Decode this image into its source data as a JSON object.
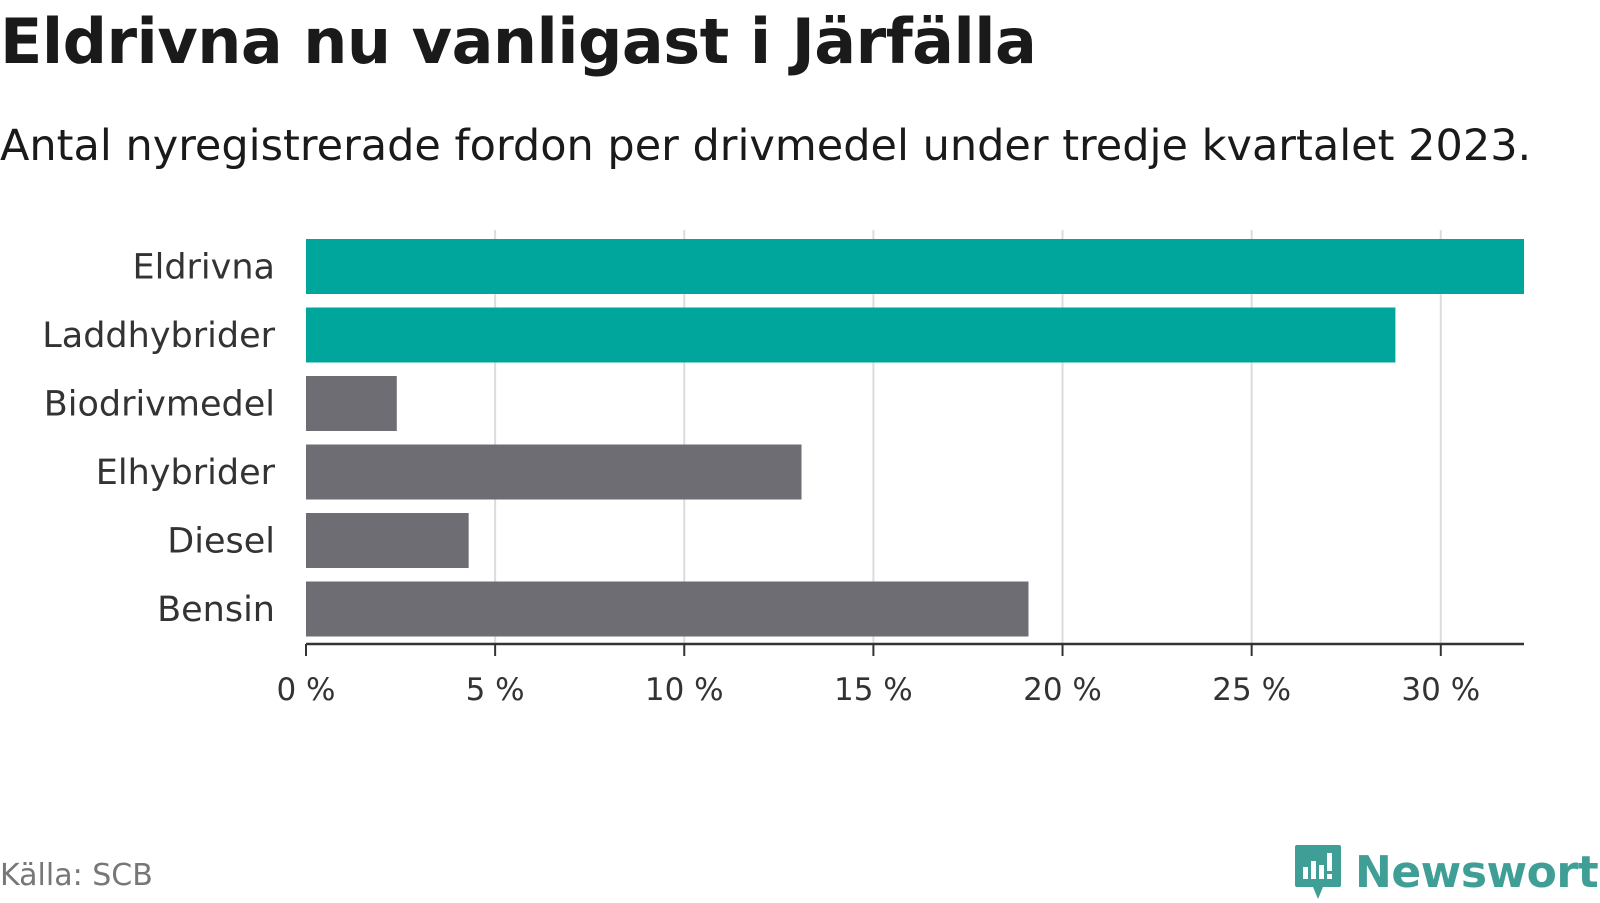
{
  "title": "Eldrivna nu vanligast i Järfälla",
  "subtitle": "Antal nyregistrerade fordon per drivmedel under tredje kvartalet 2023.",
  "source": "Källa: SCB",
  "brand": "Newsworthy",
  "colors": {
    "highlight": "#00a59b",
    "default": "#6e6d73",
    "brand": "#3f9f96"
  },
  "chart_data": {
    "type": "bar",
    "orientation": "horizontal",
    "categories": [
      "Eldrivna",
      "Laddhybrider",
      "Biodrivmedel",
      "Elhybrider",
      "Diesel",
      "Bensin"
    ],
    "values": [
      32.2,
      28.8,
      2.4,
      13.1,
      4.3,
      19.1
    ],
    "highlighted": [
      true,
      true,
      false,
      false,
      false,
      false
    ],
    "xlim": [
      0,
      32.2
    ],
    "xticks": [
      0,
      5,
      10,
      15,
      20,
      25,
      30
    ],
    "xtick_labels": [
      "0 %",
      "5 %",
      "10 %",
      "15 %",
      "20 %",
      "25 %",
      "30 %"
    ],
    "grid": true,
    "unit": "%"
  }
}
